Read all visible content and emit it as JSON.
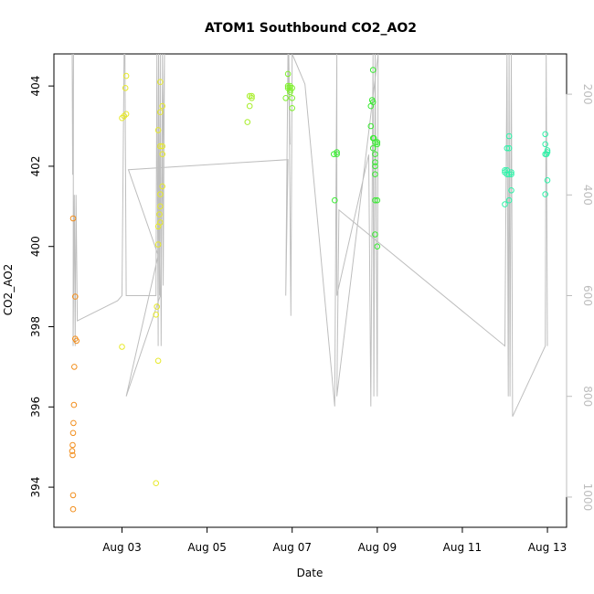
{
  "chart_data": {
    "type": "scatter",
    "title": "ATOM1 Southbound CO2_AO2",
    "xlabel": "Date",
    "ylabel": "CO2_AO2",
    "x_ticks": [
      "Aug 03",
      "Aug 05",
      "Aug 07",
      "Aug 09",
      "Aug 11",
      "Aug 13"
    ],
    "x_tick_days": [
      3,
      5,
      7,
      9,
      11,
      13
    ],
    "xlim": [
      1.4,
      13.45
    ],
    "y_ticks": [
      394,
      396,
      398,
      400,
      402,
      404
    ],
    "ylim": [
      393.0,
      404.8
    ],
    "y2_ticks": [
      200,
      400,
      600,
      800,
      1000
    ],
    "y2lim": [
      1060,
      120
    ],
    "y2_reversed": true,
    "grid": false,
    "point_style": "open-circle",
    "colors": {
      "orange": "#f28e1c",
      "yellow": "#e7e92a",
      "yellow_green": "#a8ee2b",
      "green_light": "#7ef02b",
      "green": "#3aeb33",
      "cyan_green": "#2ef2a8",
      "profile_line": "#bebebe"
    },
    "series": [
      {
        "color_key": "orange",
        "x": [
          1.85,
          1.85,
          1.84,
          1.83,
          1.84,
          1.85,
          1.86,
          1.87,
          1.88,
          1.9,
          1.85,
          1.9,
          1.93
        ],
        "y": [
          393.45,
          393.8,
          394.8,
          394.9,
          395.05,
          395.35,
          395.6,
          396.05,
          397.0,
          398.75,
          400.7,
          397.7,
          397.65
        ]
      },
      {
        "color_key": "yellow",
        "x": [
          3.0,
          3.05,
          3.1,
          3.08,
          3.1,
          3.0,
          3.8,
          3.8,
          3.82,
          3.85,
          3.9,
          3.95,
          3.85,
          3.9,
          3.95,
          3.9,
          3.95,
          3.85,
          3.9,
          3.95,
          3.9,
          3.85,
          3.88,
          3.9
        ],
        "y": [
          397.5,
          403.25,
          403.3,
          403.95,
          404.25,
          403.2,
          394.1,
          398.3,
          398.5,
          400.05,
          400.6,
          401.5,
          400.5,
          401.3,
          402.3,
          402.5,
          402.5,
          402.9,
          403.35,
          403.5,
          404.1,
          397.15,
          400.8,
          401.0
        ]
      },
      {
        "color_key": "yellow_green",
        "x": [
          5.95,
          6.0,
          6.05,
          6.05,
          6.0
        ],
        "y": [
          403.1,
          403.5,
          403.7,
          403.75,
          403.75
        ]
      },
      {
        "color_key": "green_light",
        "x": [
          6.85,
          6.9,
          6.95,
          6.95,
          7.0,
          6.9,
          6.95,
          6.95,
          6.9,
          7.0,
          7.0
        ],
        "y": [
          403.7,
          403.95,
          404.0,
          403.85,
          403.95,
          404.3,
          403.9,
          403.95,
          404.0,
          403.7,
          403.45
        ]
      },
      {
        "color_key": "green",
        "x": [
          8.0,
          8.05,
          8.05,
          7.98,
          8.9,
          8.85,
          8.9,
          8.95,
          8.95,
          8.9,
          8.95,
          8.95,
          9.0,
          8.95,
          8.95,
          8.9,
          9.0,
          8.85,
          8.88,
          8.92,
          8.95,
          9.0,
          9.0
        ],
        "y": [
          401.15,
          402.3,
          402.35,
          402.3,
          404.4,
          403.0,
          402.7,
          402.6,
          402.0,
          402.45,
          401.8,
          402.3,
          402.55,
          401.15,
          400.3,
          403.6,
          400.0,
          403.5,
          403.65,
          402.7,
          402.1,
          401.15,
          402.6
        ]
      },
      {
        "color_key": "cyan_green",
        "x": [
          12.0,
          12.05,
          12.1,
          12.0,
          12.05,
          12.1,
          12.15,
          12.0,
          12.05,
          12.1,
          12.15,
          12.1,
          12.15,
          12.95,
          12.95,
          13.0,
          13.0,
          12.95,
          13.0,
          12.95,
          12.98
        ],
        "y": [
          401.05,
          401.9,
          401.8,
          401.85,
          402.45,
          402.45,
          401.85,
          401.9,
          401.8,
          402.75,
          401.8,
          401.15,
          401.4,
          401.3,
          402.8,
          402.35,
          401.65,
          402.55,
          402.4,
          402.3,
          402.3
        ]
      }
    ],
    "profile_line": {
      "x": [
        1.83,
        1.84,
        1.86,
        1.85,
        1.88,
        1.9,
        1.9,
        1.92,
        1.95,
        2.9,
        3.0,
        3.05,
        3.07,
        3.1,
        3.8,
        3.82,
        3.85,
        3.86,
        3.88,
        3.9,
        3.92,
        3.95,
        3.97,
        4.0,
        3.9,
        3.3,
        3.1,
        3.85,
        3.15,
        6.9,
        6.85,
        6.9,
        6.95,
        6.92,
        6.97,
        7.0,
        7.1,
        7.3,
        8.0,
        8.05,
        8.05,
        8.8,
        8.85,
        8.9,
        8.92,
        8.95,
        9.0,
        9.02,
        8.05,
        8.1,
        12.0,
        12.05,
        12.08,
        12.1,
        12.12,
        12.15,
        12.18,
        12.95,
        12.97,
        13.0
      ],
      "y": [
        120,
        360,
        120,
        700,
        400,
        700,
        680,
        400,
        650,
        610,
        600,
        120,
        120,
        600,
        600,
        120,
        700,
        120,
        600,
        120,
        700,
        120,
        580,
        120,
        600,
        750,
        800,
        520,
        350,
        330,
        600,
        120,
        300,
        120,
        640,
        120,
        140,
        180,
        820,
        120,
        600,
        320,
        820,
        120,
        800,
        120,
        800,
        120,
        800,
        430,
        700,
        120,
        800,
        120,
        800,
        120,
        840,
        700,
        120,
        700
      ]
    }
  }
}
